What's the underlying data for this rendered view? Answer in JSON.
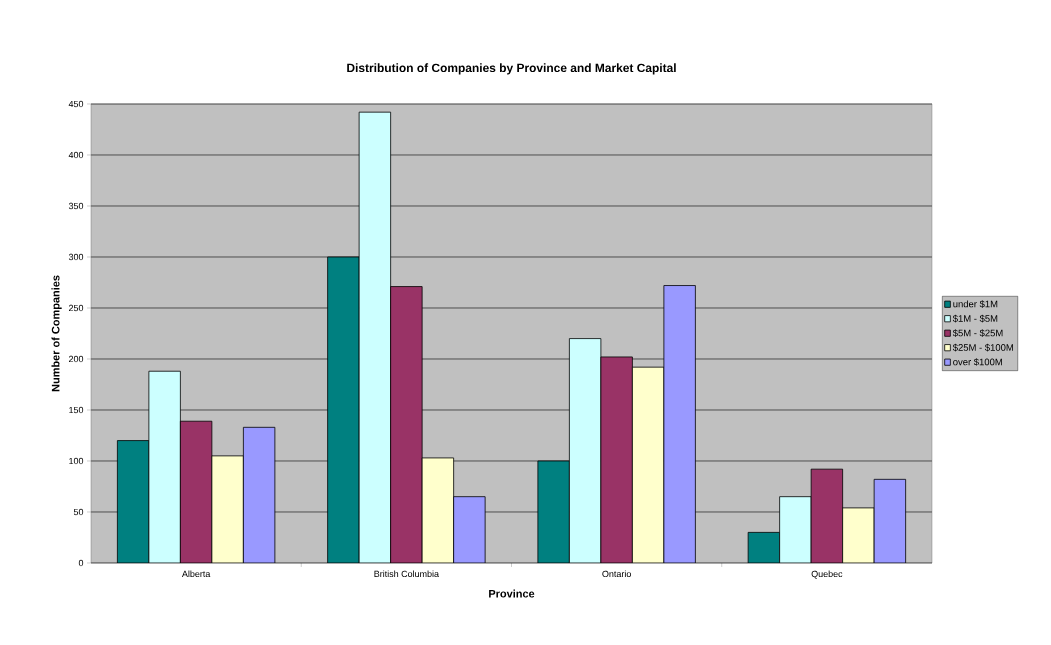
{
  "chart_data": {
    "type": "bar",
    "title": "Distribution of Companies by Province and Market Capital",
    "xlabel": "Province",
    "ylabel": "Number of Companies",
    "categories": [
      "Alberta",
      "British Columbia",
      "Ontario",
      "Quebec"
    ],
    "series": [
      {
        "name": "under $1M",
        "color": "#008080",
        "values": [
          120,
          300,
          100,
          30
        ]
      },
      {
        "name": "$1M - $5M",
        "color": "#ccffff",
        "values": [
          188,
          442,
          220,
          65
        ]
      },
      {
        "name": "$5M - $25M",
        "color": "#993366",
        "values": [
          139,
          271,
          202,
          92
        ]
      },
      {
        "name": "$25M - $100M",
        "color": "#ffffcc",
        "values": [
          105,
          103,
          192,
          54
        ]
      },
      {
        "name": "over $100M",
        "color": "#9999ff",
        "values": [
          133,
          65,
          272,
          82
        ]
      }
    ],
    "ylim": [
      0,
      450
    ],
    "yticks": [
      0,
      50,
      100,
      150,
      200,
      250,
      300,
      350,
      400,
      450
    ],
    "grid": "y",
    "legend": "right"
  }
}
